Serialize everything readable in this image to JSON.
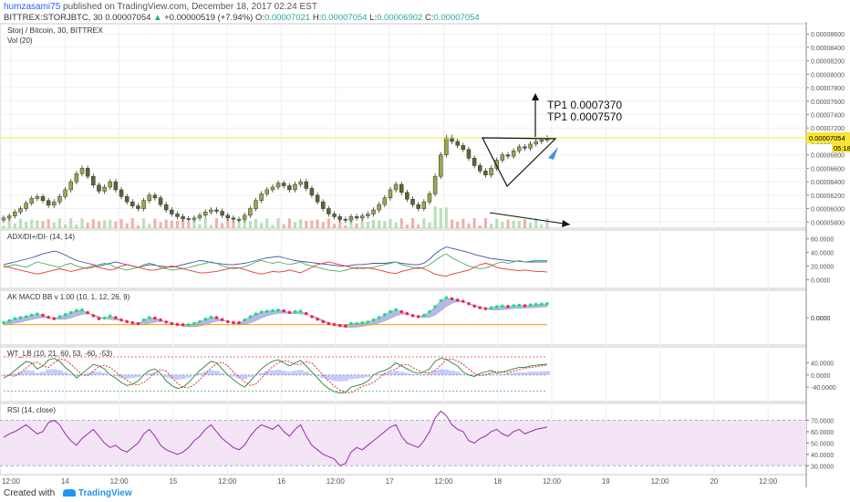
{
  "header": {
    "user": "humzasami75",
    "published": "published on TradingView.com, December 18, 2017 02:24 EST",
    "symbol_line": "BITTREX:STORJBTC, 30",
    "last": "0.00007054",
    "change": "+0.00000519 (+7.94%)",
    "open_label": "O:",
    "open": "0.00007021",
    "high_label": "H:",
    "high": "0.00007054",
    "low_label": "L:",
    "low": "0.00006902",
    "close_label": "C:",
    "close": "0.00007054"
  },
  "footer": {
    "created_with": "Created with",
    "brand": "TradingView"
  },
  "colors": {
    "bull": "#26a69a",
    "bear": "#ef5350",
    "candle_up": "#9ea64a",
    "candle_down": "#556b2f",
    "adx": "#3f51b5",
    "di_plus": "#4caf50",
    "di_minus": "#e53935",
    "macd_fill": "#7b7fd4",
    "wt_fill": "#9fa8ff",
    "rsi": "#9c27b0",
    "rsi_band": "#f3e5f5",
    "price_line": "#f4ef3a"
  },
  "chart_data": [
    {
      "type": "candlestick",
      "name": "price",
      "title": "Storj / Bitcoin, 30, BITTREX",
      "volume_label": "Vol (20)",
      "y_ticks": [
        "0.00008600",
        "0.00008400",
        "0.00008200",
        "0.00008000",
        "0.00007800",
        "0.00007600",
        "0.00007400",
        "0.00007200",
        "0.00007000",
        "0.00006800",
        "0.00006600",
        "0.00006400",
        "0.00006200",
        "0.00006000",
        "0.00005800"
      ],
      "ylim": [
        5.79e-05,
        8.67e-05
      ],
      "last_price_label": "0.00007054",
      "countdown_label": "05:18",
      "annotations": [
        "TP1 0.0007370",
        "TP1 0.0007570"
      ],
      "closes": [
        5.86e-05,
        5.89e-05,
        5.95e-05,
        6e-05,
        6.08e-05,
        6.15e-05,
        6.18e-05,
        6.12e-05,
        6.05e-05,
        6.1e-05,
        6.18e-05,
        6.28e-05,
        6.4e-05,
        6.52e-05,
        6.6e-05,
        6.48e-05,
        6.35e-05,
        6.26e-05,
        6.32e-05,
        6.4e-05,
        6.28e-05,
        6.18e-05,
        6.1e-05,
        6.04e-05,
        6e-05,
        6.12e-05,
        6.2e-05,
        6.16e-05,
        6.06e-05,
        5.98e-05,
        5.92e-05,
        5.88e-05,
        5.85e-05,
        5.84e-05,
        5.86e-05,
        5.9e-05,
        5.95e-05,
        5.98e-05,
        5.96e-05,
        5.9e-05,
        5.86e-05,
        5.84e-05,
        5.84e-05,
        5.9e-05,
        6e-05,
        6.12e-05,
        6.22e-05,
        6.28e-05,
        6.32e-05,
        6.38e-05,
        6.34e-05,
        6.28e-05,
        6.36e-05,
        6.4e-05,
        6.3e-05,
        6.2e-05,
        6.1e-05,
        6e-05,
        5.92e-05,
        5.88e-05,
        5.84e-05,
        5.83e-05,
        5.88e-05,
        5.86e-05,
        5.89e-05,
        5.92e-05,
        5.98e-05,
        6.06e-05,
        6.16e-05,
        6.28e-05,
        6.36e-05,
        6.24e-05,
        6.14e-05,
        6.06e-05,
        6e-05,
        6.1e-05,
        6.22e-05,
        6.48e-05,
        6.8e-05,
        7.06e-05,
        7e-05,
        6.94e-05,
        6.88e-05,
        6.75e-05,
        6.64e-05,
        6.56e-05,
        6.5e-05,
        6.6e-05,
        6.72e-05,
        6.8e-05,
        6.78e-05,
        6.86e-05,
        6.92e-05,
        6.9e-05,
        6.96e-05,
        7e-05,
        7.02e-05,
        7.05e-05
      ]
    },
    {
      "type": "line",
      "name": "adx",
      "title": "ADX/DI+/DI- (14, 14)",
      "y_ticks": [
        "60.0000",
        "40.0000",
        "20.0000",
        "0.0000"
      ],
      "ylim": [
        -5,
        65
      ],
      "series": [
        {
          "name": "ADX",
          "values": [
            22,
            24,
            26,
            28,
            30,
            32,
            35,
            38,
            40,
            42,
            40,
            36,
            32,
            28,
            26,
            24,
            22,
            20,
            22,
            24,
            26,
            24,
            22,
            20,
            18,
            20,
            22,
            21,
            20,
            19,
            18,
            20,
            22,
            24,
            26,
            28,
            27,
            25,
            24,
            23,
            22,
            22,
            23,
            24,
            26,
            28,
            30,
            32,
            33,
            34,
            32,
            30,
            28,
            27,
            26,
            25,
            24,
            23,
            22,
            21,
            20,
            20,
            21,
            22,
            22,
            23,
            24,
            24,
            24,
            25,
            26,
            24,
            23,
            22,
            22,
            24,
            30,
            38,
            44,
            48,
            46,
            44,
            42,
            40,
            37,
            35,
            33,
            31,
            30,
            29,
            28,
            27,
            27,
            26,
            26,
            26,
            26,
            26
          ]
        },
        {
          "name": "DI+",
          "values": [
            18,
            20,
            22,
            20,
            18,
            22,
            26,
            24,
            22,
            20,
            18,
            22,
            24,
            20,
            18,
            16,
            18,
            22,
            24,
            22,
            18,
            16,
            14,
            16,
            18,
            22,
            24,
            22,
            18,
            16,
            14,
            15,
            16,
            18,
            20,
            22,
            24,
            26,
            24,
            20,
            18,
            16,
            17,
            19,
            22,
            26,
            28,
            26,
            24,
            26,
            24,
            22,
            24,
            26,
            22,
            20,
            18,
            16,
            14,
            13,
            12,
            14,
            16,
            18,
            16,
            17,
            18,
            20,
            22,
            24,
            26,
            22,
            20,
            18,
            16,
            18,
            22,
            28,
            34,
            38,
            32,
            28,
            24,
            20,
            18,
            16,
            17,
            20,
            24,
            26,
            24,
            26,
            28,
            26,
            27,
            28,
            28,
            28
          ]
        },
        {
          "name": "DI-",
          "values": [
            20,
            18,
            16,
            14,
            12,
            10,
            8,
            10,
            12,
            14,
            16,
            14,
            12,
            14,
            16,
            18,
            20,
            18,
            16,
            14,
            16,
            20,
            22,
            20,
            18,
            16,
            14,
            14,
            16,
            18,
            20,
            18,
            16,
            14,
            12,
            10,
            10,
            11,
            12,
            14,
            16,
            18,
            17,
            15,
            12,
            10,
            8,
            10,
            12,
            11,
            12,
            14,
            12,
            10,
            14,
            18,
            22,
            24,
            26,
            24,
            22,
            20,
            18,
            16,
            18,
            17,
            16,
            14,
            12,
            10,
            9,
            12,
            14,
            16,
            18,
            16,
            12,
            8,
            6,
            5,
            8,
            10,
            12,
            14,
            18,
            22,
            24,
            22,
            18,
            16,
            15,
            14,
            13,
            14,
            13,
            12,
            12,
            11
          ]
        }
      ]
    },
    {
      "type": "line",
      "name": "macd",
      "title": "AK MACD BB v 1.00 (10, 1, 12, 26, 9)",
      "y_ticks": [
        "0.0000",
        "0.0000"
      ],
      "ylim": [
        -1.1,
        1.1
      ],
      "values": [
        -0.25,
        -0.15,
        -0.05,
        0.0,
        0.05,
        0.12,
        0.18,
        0.12,
        0.02,
        -0.05,
        0.05,
        0.15,
        0.25,
        0.35,
        0.38,
        0.25,
        0.1,
        -0.05,
        -0.02,
        0.08,
        0.0,
        -0.12,
        -0.2,
        -0.26,
        -0.3,
        -0.12,
        0.0,
        -0.02,
        -0.12,
        -0.22,
        -0.3,
        -0.34,
        -0.36,
        -0.36,
        -0.3,
        -0.2,
        -0.08,
        0.02,
        0.0,
        -0.1,
        -0.2,
        -0.25,
        -0.26,
        -0.12,
        0.05,
        0.18,
        0.28,
        0.32,
        0.35,
        0.38,
        0.34,
        0.26,
        0.3,
        0.32,
        0.2,
        0.05,
        -0.08,
        -0.2,
        -0.3,
        -0.35,
        -0.4,
        -0.42,
        -0.3,
        -0.3,
        -0.26,
        -0.22,
        -0.12,
        0.0,
        0.15,
        0.3,
        0.4,
        0.3,
        0.2,
        0.1,
        0.05,
        0.12,
        0.3,
        0.55,
        0.85,
        1.0,
        0.95,
        0.88,
        0.82,
        0.7,
        0.58,
        0.5,
        0.45,
        0.5,
        0.55,
        0.58,
        0.56,
        0.6,
        0.62,
        0.6,
        0.64,
        0.66,
        0.68,
        0.7
      ]
    },
    {
      "type": "line",
      "name": "wt",
      "title": "WT_LB (10, 21, 60, 53, -60, -53)",
      "y_ticks": [
        "40.0000",
        "0.0000",
        "-40.0000"
      ],
      "ylim": [
        -70,
        75
      ],
      "values": [
        -10,
        0,
        15,
        30,
        45,
        40,
        20,
        30,
        50,
        55,
        45,
        25,
        10,
        -10,
        5,
        20,
        35,
        30,
        20,
        0,
        -10,
        -25,
        -35,
        -30,
        -20,
        0,
        15,
        20,
        5,
        -20,
        -35,
        -45,
        -40,
        -25,
        -5,
        15,
        30,
        45,
        40,
        20,
        0,
        -15,
        -30,
        -40,
        -20,
        0,
        20,
        35,
        45,
        50,
        40,
        30,
        40,
        48,
        30,
        10,
        -10,
        -30,
        -45,
        -55,
        -60,
        -58,
        -40,
        -35,
        -30,
        -20,
        0,
        10,
        15,
        25,
        40,
        30,
        20,
        10,
        5,
        10,
        20,
        45,
        55,
        52,
        40,
        30,
        10,
        0,
        -5,
        5,
        10,
        15,
        5,
        10,
        15,
        20,
        25,
        25,
        30,
        32,
        34,
        36
      ]
    },
    {
      "type": "line",
      "name": "rsi",
      "title": "RSI (14, close)",
      "y_ticks": [
        "70.0000",
        "60.0000",
        "50.0000",
        "40.0000",
        "30.0000"
      ],
      "ylim": [
        27,
        80
      ],
      "values": [
        55,
        58,
        60,
        63,
        66,
        62,
        58,
        60,
        68,
        70,
        66,
        58,
        52,
        48,
        54,
        58,
        62,
        56,
        50,
        46,
        48,
        44,
        42,
        46,
        50,
        58,
        62,
        56,
        48,
        44,
        42,
        40,
        42,
        46,
        52,
        56,
        62,
        66,
        60,
        54,
        50,
        46,
        44,
        48,
        56,
        62,
        66,
        64,
        62,
        66,
        60,
        56,
        62,
        66,
        56,
        48,
        44,
        40,
        38,
        36,
        30,
        32,
        42,
        46,
        44,
        48,
        52,
        56,
        60,
        64,
        66,
        56,
        50,
        48,
        46,
        52,
        60,
        72,
        78,
        74,
        66,
        62,
        60,
        52,
        50,
        54,
        56,
        60,
        62,
        58,
        56,
        60,
        62,
        58,
        60,
        62,
        63,
        64
      ]
    }
  ],
  "time_axis": {
    "labels": [
      "12:00",
      "14",
      "12:00",
      "15",
      "12:00",
      "16",
      "12:00",
      "17",
      "12:00",
      "18",
      "12:00",
      "19",
      "12:00",
      "20",
      "12:00"
    ]
  }
}
